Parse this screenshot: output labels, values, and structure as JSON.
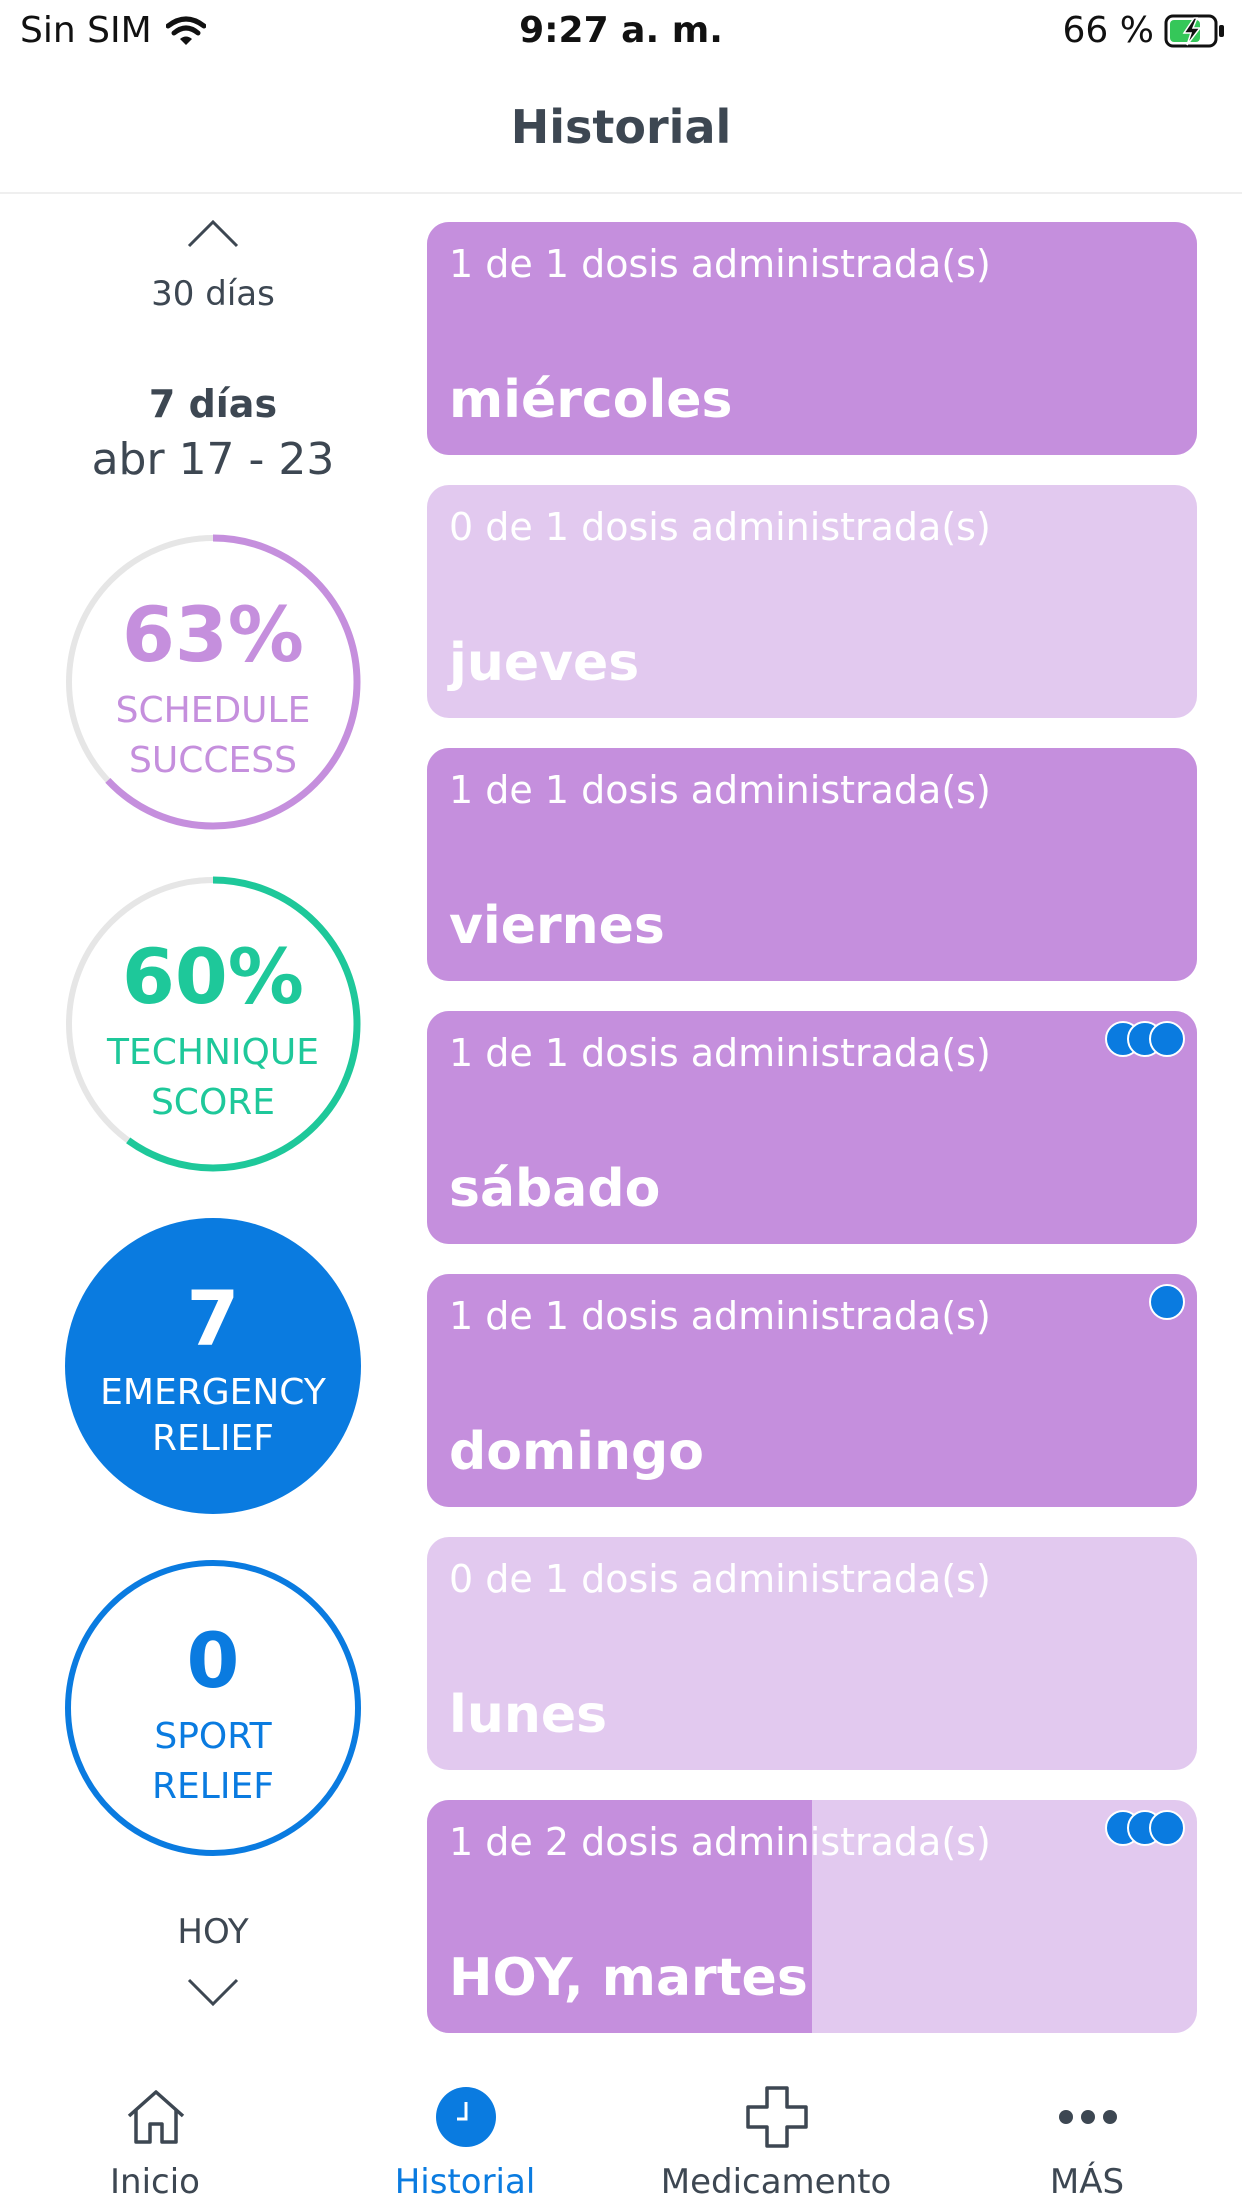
{
  "status_bar": {
    "carrier": "Sin SIM",
    "time": "9:27 a. m.",
    "battery": "66 %"
  },
  "header": {
    "title": "Historial"
  },
  "range": {
    "prev_label": "30 días",
    "current_label": "7 días",
    "dates": "abr 17 - 23",
    "next_label": "HOY"
  },
  "stats": {
    "schedule": {
      "value": "63%",
      "line1": "SCHEDULE",
      "line2": "SUCCESS",
      "fraction": 0.63,
      "color": "#c58fdd"
    },
    "technique": {
      "value": "60%",
      "line1": "TECHNIQUE",
      "line2": "SCORE",
      "fraction": 0.6,
      "color": "#1ec89a"
    },
    "emergency": {
      "value": "7",
      "line1": "EMERGENCY",
      "line2": "RELIEF",
      "color": "#0a7be0"
    },
    "sport": {
      "value": "0",
      "line1": "SPORT",
      "line2": "RELIEF",
      "color": "#0a7be0"
    }
  },
  "days": [
    {
      "doses": "1 de 1 dosis administrada(s)",
      "name": "miércoles",
      "fraction": 1,
      "dots": 0
    },
    {
      "doses": "0 de 1 dosis administrada(s)",
      "name": "jueves",
      "fraction": 0,
      "dots": 0
    },
    {
      "doses": "1 de 1 dosis administrada(s)",
      "name": "viernes",
      "fraction": 1,
      "dots": 0
    },
    {
      "doses": "1 de 1 dosis administrada(s)",
      "name": "sábado",
      "fraction": 1,
      "dots": 3
    },
    {
      "doses": "1 de 1 dosis administrada(s)",
      "name": "domingo",
      "fraction": 1,
      "dots": 1
    },
    {
      "doses": "0 de 1 dosis administrada(s)",
      "name": "lunes",
      "fraction": 0,
      "dots": 0
    },
    {
      "doses": "1 de 2 dosis administrada(s)",
      "name": "HOY, martes",
      "fraction": 0.5,
      "dots": 3
    }
  ],
  "tabs": [
    {
      "label": "Inicio",
      "icon": "home-icon",
      "active": false
    },
    {
      "label": "Historial",
      "icon": "clock-icon",
      "active": true
    },
    {
      "label": "Medicamento",
      "icon": "medical-cross-icon",
      "active": false
    },
    {
      "label": "MÁS",
      "icon": "more-dots-icon",
      "active": false
    }
  ],
  "colors": {
    "accent": "#0a7be0",
    "inactive_tab": "#3d4752"
  }
}
